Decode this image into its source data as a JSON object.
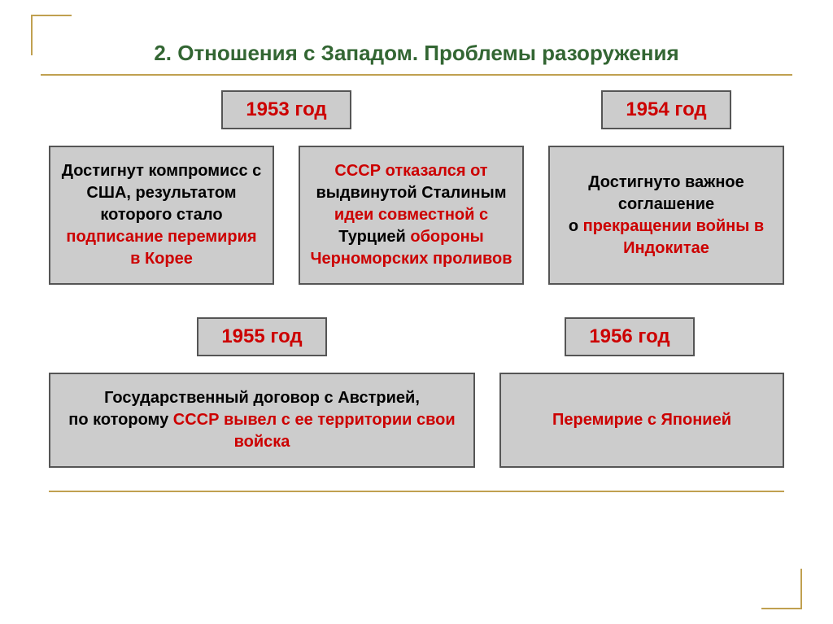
{
  "title": "2. Отношения с Западом. Проблемы разоружения",
  "colors": {
    "title": "#336633",
    "accent_line": "#c0a050",
    "box_bg": "#cccccc",
    "box_border": "#555555",
    "text_black": "#000000",
    "text_red": "#cc0000",
    "background": "#ffffff"
  },
  "typography": {
    "title_fontsize": 26,
    "year_fontsize": 24,
    "body_fontsize": 20,
    "font_family": "Arial"
  },
  "row1": {
    "years": [
      "1953 год",
      "1954 год"
    ],
    "boxes": [
      {
        "segments": [
          {
            "text": "Достигнут компромисс с США, результатом которого стало ",
            "color": "black"
          },
          {
            "text": "подписание перемирия в Корее",
            "color": "red"
          }
        ]
      },
      {
        "segments": [
          {
            "text": "СССР отказался от выдвинутой Сталиным ",
            "color": "red"
          },
          {
            "text": "идеи совместной с Турцией ",
            "color": "black",
            "mixed": true
          }
        ],
        "full_black": "Достигнут компромисс с США"
      },
      {
        "segments": [
          {
            "text": "Достигнуто важное соглашение о ",
            "color": "black"
          },
          {
            "text": "прекращении войны в Индокитае",
            "color": "red"
          }
        ]
      }
    ]
  },
  "box1": {
    "p1": "Достигнут компромисс с США, результатом которого стало",
    "p2": "подписание перемирия в Корее"
  },
  "box2": {
    "l1a": "СССР отказался от",
    "l1b": "выдвинутой",
    "l2a": "Сталиным",
    "l2b": "идеи совместной с",
    "l3a": "Турцией",
    "l3b": "обороны Черноморских проливов"
  },
  "box3": {
    "p1": "Достигнуто важное соглашение",
    "p2a": "о",
    "p2b": "прекращении войны в Индокитае"
  },
  "row2": {
    "years": [
      "1955 год",
      "1956 год"
    ]
  },
  "box4": {
    "l1": "Государственный договор с Австрией,",
    "l2a": "по которому",
    "l2b": "СССР вывел с ее территории свои войска"
  },
  "box5": {
    "text": "Перемирие с Японией"
  }
}
